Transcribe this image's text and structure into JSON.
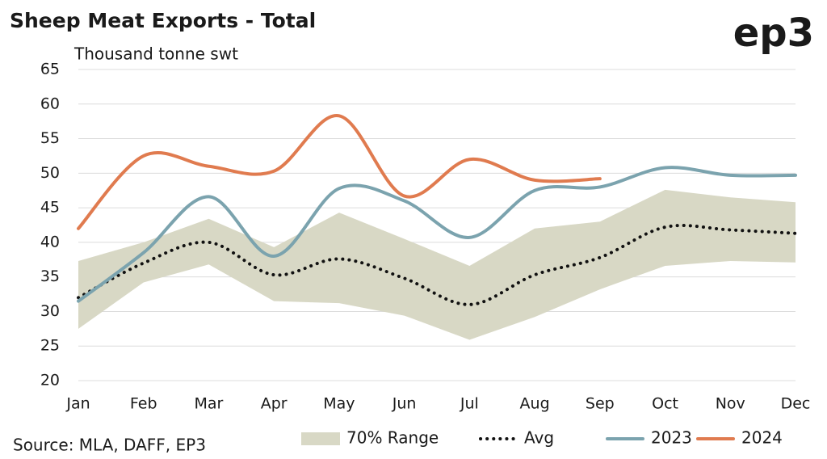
{
  "chart_data": {
    "type": "line",
    "title": "Sheep Meat Exports - Total",
    "y_label": "Thousand tonne swt",
    "logo": "ep3",
    "source": "Source: MLA, DAFF, EP3",
    "categories": [
      "Jan",
      "Feb",
      "Mar",
      "Apr",
      "May",
      "Jun",
      "Jul",
      "Aug",
      "Sep",
      "Oct",
      "Nov",
      "Dec"
    ],
    "ylim": [
      20,
      65
    ],
    "yticks": [
      20,
      25,
      30,
      35,
      40,
      45,
      50,
      55,
      60,
      65
    ],
    "grid": true,
    "series": [
      {
        "name": "70% Range",
        "type": "band",
        "color": "#d8d8c5",
        "upper": [
          37.3,
          40,
          43.4,
          39.3,
          44.3,
          40.5,
          36.6,
          42,
          43,
          47.6,
          46.5,
          45.8
        ],
        "lower": [
          27.5,
          34.2,
          36.8,
          31.5,
          31.2,
          29.4,
          25.9,
          29.2,
          33.2,
          36.6,
          37.3,
          37.1
        ]
      },
      {
        "name": "Avg",
        "type": "dotted",
        "color": "#111111",
        "values": [
          32,
          37,
          40,
          35.3,
          37.6,
          34.8,
          31,
          35.3,
          37.8,
          42.2,
          41.8,
          41.3
        ]
      },
      {
        "name": "2023",
        "type": "line",
        "color": "#7ba3ae",
        "values": [
          31.5,
          38.5,
          46.6,
          38,
          47.8,
          46,
          40.7,
          47.5,
          48,
          50.8,
          49.7,
          49.7
        ]
      },
      {
        "name": "2024",
        "type": "line",
        "color": "#e07b4f",
        "values": [
          42,
          52.5,
          51,
          50.3,
          58.3,
          46.7,
          52,
          49,
          49.2,
          null,
          null,
          null
        ]
      }
    ]
  }
}
